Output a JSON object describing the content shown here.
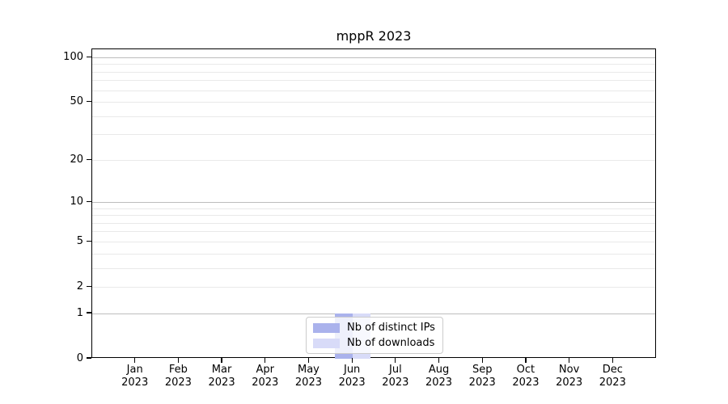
{
  "chart_data": {
    "type": "bar",
    "title": "mppR 2023",
    "categories": [
      "Jan 2023",
      "Feb 2023",
      "Mar 2023",
      "Apr 2023",
      "May 2023",
      "Jun 2023",
      "Jul 2023",
      "Aug 2023",
      "Sep 2023",
      "Oct 2023",
      "Nov 2023",
      "Dec 2023"
    ],
    "series": [
      {
        "name": "Nb of distinct IPs",
        "color": "#aab2ec",
        "values": [
          0,
          0,
          0,
          0,
          0,
          1,
          0,
          0,
          0,
          0,
          0,
          0
        ]
      },
      {
        "name": "Nb of downloads",
        "color": "#d8dbf8",
        "values": [
          0,
          0,
          0,
          0,
          0,
          1,
          0,
          0,
          0,
          0,
          0,
          0
        ]
      }
    ],
    "y_axis": {
      "scale": "log1p",
      "tick_labels": [
        "100",
        "50",
        "20",
        "10",
        "5",
        "2",
        "1",
        "0"
      ],
      "tick_values": [
        100,
        50,
        20,
        10,
        5,
        2,
        1,
        0
      ],
      "major_gridlines": [
        1,
        10,
        100
      ],
      "minor_gridlines": [
        2,
        3,
        4,
        5,
        6,
        7,
        8,
        9,
        20,
        30,
        40,
        50,
        60,
        70,
        80,
        90
      ],
      "ylim": [
        0,
        114
      ]
    },
    "grid": true,
    "legend_position": "lower-center"
  },
  "colors": {
    "major_grid": "#bdbdbd",
    "minor_grid": "#e9e9e9",
    "axis": "#000000",
    "legend_border": "#cccccc"
  }
}
